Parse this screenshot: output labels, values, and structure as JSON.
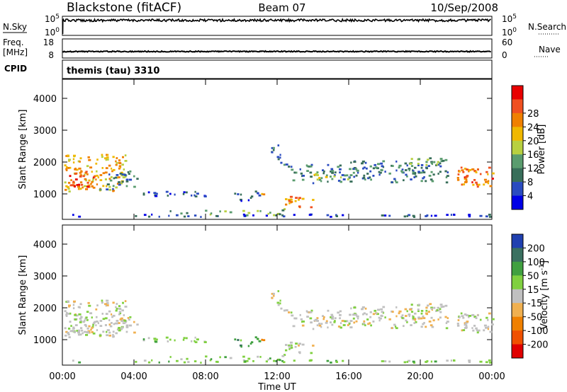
{
  "header": {
    "title": "Blackstone (fitACF)",
    "beam": "Beam 07",
    "date": "10/Sep/2008"
  },
  "aux_panels": {
    "nsky_label": "N.Sky",
    "nsky_ticks": [
      "10^5",
      "10^0"
    ],
    "nsearch_label": "N.Search",
    "nsearch_ticks": [
      "10^5",
      "10^0"
    ],
    "freq_label_line1": "Freq.",
    "freq_label_line2": "[MHz]",
    "freq_ticks": [
      "18",
      "8"
    ],
    "nave_label": "Nave",
    "nave_ticks": [
      "60",
      "0"
    ],
    "cpid_label": "CPID",
    "cpid_value": "themis (tau) 3310"
  },
  "colors": {
    "power_scale": [
      "#0000e6",
      "#2a4bc0",
      "#386e5a",
      "#5a9c6e",
      "#b8d040",
      "#f0b800",
      "#f08000",
      "#f05020",
      "#e80000"
    ],
    "velocity_scale": [
      "#e00000",
      "#f05000",
      "#f08000",
      "#f0b050",
      "#c0c0c0",
      "#80d040",
      "#40a040",
      "#3a7060",
      "#2040b0"
    ],
    "nsky_line": "#000000"
  },
  "chart_data": [
    {
      "type": "heatmap",
      "name": "power",
      "ylabel": "Slant Range [km]",
      "xlabel": "",
      "x_ticks": [
        "00:00",
        "04:00",
        "08:00",
        "12:00",
        "16:00",
        "20:00",
        "00:00"
      ],
      "x_range_hours": [
        0,
        24
      ],
      "ylim": [
        200,
        4600
      ],
      "y_ticks": [
        1000,
        2000,
        3000,
        4000
      ],
      "colorbar": {
        "label": "Power [dB]",
        "ticks": [
          "4",
          "8",
          "12",
          "16",
          "20",
          "24",
          "28"
        ],
        "range": [
          0,
          32
        ]
      }
    },
    {
      "type": "heatmap",
      "name": "velocity",
      "ylabel": "Slant Range [km]",
      "xlabel": "Time UT",
      "x_ticks": [
        "00:00",
        "04:00",
        "08:00",
        "12:00",
        "16:00",
        "20:00",
        "00:00"
      ],
      "x_range_hours": [
        0,
        24
      ],
      "ylim": [
        200,
        4600
      ],
      "y_ticks": [
        1000,
        2000,
        3000,
        4000
      ],
      "colorbar": {
        "label": "Velocity [m s^-1]",
        "ticks": [
          "200",
          "100",
          "50",
          "15",
          "-15",
          "-50",
          "-100",
          "-200"
        ]
      }
    }
  ]
}
